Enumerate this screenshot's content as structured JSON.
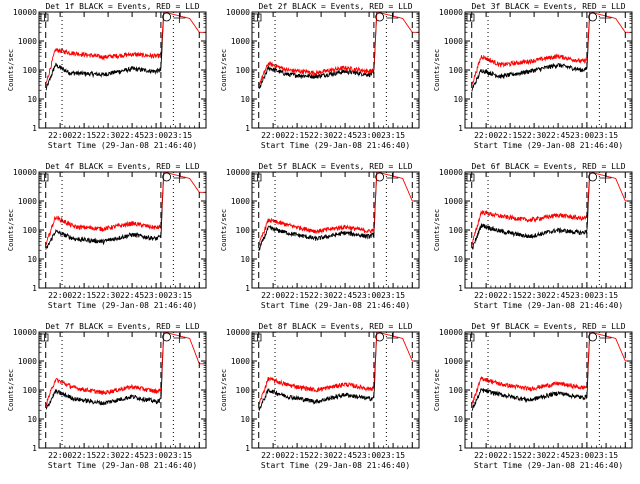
{
  "chart_data": [
    {
      "type": "line",
      "title": "Det 1f BLACK = Events, RED = LLD",
      "xlabel": "Start Time (29-Jan-08 21:46:40)",
      "ylabel": "Counts/sec",
      "xticks": [
        "22:00",
        "22:15",
        "22:30",
        "22:45",
        "23:00",
        "23:15"
      ],
      "yticks": [
        "1",
        "10",
        "100",
        "1000",
        "10000"
      ],
      "yscale": "log",
      "ylim": [
        1,
        10000
      ],
      "series": [
        {
          "name": "Events",
          "color": "#000000",
          "anchors": [
            [
              21.85,
              20
            ],
            [
              21.95,
              150
            ],
            [
              22.1,
              80
            ],
            [
              22.45,
              70
            ],
            [
              22.75,
              110
            ],
            [
              23.0,
              90
            ],
            [
              23.05,
              100
            ],
            [
              23.08,
              10000
            ]
          ]
        },
        {
          "name": "LLD",
          "color": "#ff0000",
          "anchors": [
            [
              21.85,
              30
            ],
            [
              21.95,
              500
            ],
            [
              22.1,
              400
            ],
            [
              22.45,
              280
            ],
            [
              22.75,
              350
            ],
            [
              23.0,
              300
            ],
            [
              23.05,
              320
            ],
            [
              23.08,
              10000
            ],
            [
              23.35,
              6000
            ],
            [
              23.45,
              2000
            ]
          ]
        }
      ]
    },
    {
      "type": "line",
      "title": "Det 2f BLACK = Events, RED = LLD",
      "xlabel": "Start Time (29-Jan-08 21:46:40)",
      "ylabel": "Counts/sec",
      "xticks": [
        "22:00",
        "22:15",
        "22:30",
        "22:45",
        "23:00",
        "23:15"
      ],
      "yticks": [
        "1",
        "10",
        "100",
        "1000",
        "10000"
      ],
      "yscale": "log",
      "ylim": [
        1,
        10000
      ],
      "series": [
        {
          "name": "Events",
          "color": "#000000",
          "anchors": [
            [
              21.85,
              20
            ],
            [
              21.95,
              120
            ],
            [
              22.15,
              70
            ],
            [
              22.45,
              60
            ],
            [
              22.75,
              90
            ],
            [
              23.0,
              70
            ],
            [
              23.05,
              80
            ],
            [
              23.08,
              10000
            ]
          ]
        },
        {
          "name": "LLD",
          "color": "#ff0000",
          "anchors": [
            [
              21.85,
              30
            ],
            [
              21.95,
              170
            ],
            [
              22.15,
              100
            ],
            [
              22.45,
              80
            ],
            [
              22.75,
              120
            ],
            [
              23.0,
              90
            ],
            [
              23.05,
              100
            ],
            [
              23.08,
              10000
            ],
            [
              23.35,
              6000
            ],
            [
              23.45,
              2000
            ]
          ]
        }
      ]
    },
    {
      "type": "line",
      "title": "Det 3f BLACK = Events, RED = LLD",
      "xlabel": "Start Time (29-Jan-08 21:46:40)",
      "ylabel": "Counts/sec",
      "xticks": [
        "22:00",
        "22:15",
        "22:30",
        "22:45",
        "23:00",
        "23:15"
      ],
      "yticks": [
        "1",
        "10",
        "100",
        "1000",
        "10000"
      ],
      "yscale": "log",
      "ylim": [
        1,
        10000
      ],
      "series": [
        {
          "name": "Events",
          "color": "#000000",
          "anchors": [
            [
              21.85,
              20
            ],
            [
              21.95,
              100
            ],
            [
              22.15,
              60
            ],
            [
              22.45,
              90
            ],
            [
              22.75,
              150
            ],
            [
              23.0,
              100
            ],
            [
              23.05,
              110
            ],
            [
              23.08,
              10000
            ]
          ]
        },
        {
          "name": "LLD",
          "color": "#ff0000",
          "anchors": [
            [
              21.85,
              30
            ],
            [
              21.95,
              300
            ],
            [
              22.15,
              150
            ],
            [
              22.45,
              200
            ],
            [
              22.75,
              300
            ],
            [
              23.0,
              200
            ],
            [
              23.05,
              220
            ],
            [
              23.08,
              10000
            ],
            [
              23.35,
              6000
            ],
            [
              23.45,
              2000
            ]
          ]
        }
      ]
    },
    {
      "type": "line",
      "title": "Det 4f BLACK = Events, RED = LLD",
      "xlabel": "Start Time (29-Jan-08 21:46:40)",
      "ylabel": "Counts/sec",
      "xticks": [
        "22:00",
        "22:15",
        "22:30",
        "22:45",
        "23:00",
        "23:15"
      ],
      "yticks": [
        "1",
        "10",
        "100",
        "1000",
        "10000"
      ],
      "yscale": "log",
      "ylim": [
        1,
        10000
      ],
      "series": [
        {
          "name": "Events",
          "color": "#000000",
          "anchors": [
            [
              21.85,
              20
            ],
            [
              21.95,
              90
            ],
            [
              22.15,
              50
            ],
            [
              22.45,
              40
            ],
            [
              22.75,
              70
            ],
            [
              23.0,
              50
            ],
            [
              23.05,
              60
            ],
            [
              23.08,
              10000
            ]
          ]
        },
        {
          "name": "LLD",
          "color": "#ff0000",
          "anchors": [
            [
              21.85,
              30
            ],
            [
              21.95,
              280
            ],
            [
              22.15,
              130
            ],
            [
              22.45,
              110
            ],
            [
              22.75,
              170
            ],
            [
              23.0,
              120
            ],
            [
              23.05,
              130
            ],
            [
              23.08,
              10000
            ],
            [
              23.35,
              6000
            ],
            [
              23.45,
              2000
            ]
          ]
        }
      ]
    },
    {
      "type": "line",
      "title": "Det 5f BLACK = Events, RED = LLD",
      "xlabel": "Start Time (29-Jan-08 21:46:40)",
      "ylabel": "Counts/sec",
      "xticks": [
        "22:00",
        "22:15",
        "22:30",
        "22:45",
        "23:00",
        "23:15"
      ],
      "yticks": [
        "1",
        "10",
        "100",
        "1000",
        "10000"
      ],
      "yscale": "log",
      "ylim": [
        1,
        10000
      ],
      "series": [
        {
          "name": "Events",
          "color": "#000000",
          "anchors": [
            [
              21.85,
              20
            ],
            [
              21.95,
              120
            ],
            [
              22.15,
              80
            ],
            [
              22.45,
              50
            ],
            [
              22.75,
              80
            ],
            [
              23.0,
              60
            ],
            [
              23.05,
              70
            ],
            [
              23.08,
              10000
            ]
          ]
        },
        {
          "name": "LLD",
          "color": "#ff0000",
          "anchors": [
            [
              21.85,
              30
            ],
            [
              21.95,
              220
            ],
            [
              22.15,
              150
            ],
            [
              22.45,
              90
            ],
            [
              22.75,
              130
            ],
            [
              23.0,
              90
            ],
            [
              23.05,
              100
            ],
            [
              23.08,
              10000
            ],
            [
              23.35,
              6000
            ],
            [
              23.45,
              1000
            ]
          ]
        }
      ]
    },
    {
      "type": "line",
      "title": "Det 6f BLACK = Events, RED = LLD",
      "xlabel": "Start Time (29-Jan-08 21:46:40)",
      "ylabel": "Counts/sec",
      "xticks": [
        "22:00",
        "22:15",
        "22:30",
        "22:45",
        "23:00",
        "23:15"
      ],
      "yticks": [
        "1",
        "10",
        "100",
        "1000",
        "10000"
      ],
      "yscale": "log",
      "ylim": [
        1,
        10000
      ],
      "series": [
        {
          "name": "Events",
          "color": "#000000",
          "anchors": [
            [
              21.85,
              20
            ],
            [
              21.95,
              150
            ],
            [
              22.15,
              90
            ],
            [
              22.45,
              60
            ],
            [
              22.75,
              100
            ],
            [
              23.0,
              80
            ],
            [
              23.05,
              90
            ],
            [
              23.08,
              10000
            ]
          ]
        },
        {
          "name": "LLD",
          "color": "#ff0000",
          "anchors": [
            [
              21.85,
              30
            ],
            [
              21.95,
              420
            ],
            [
              22.15,
              300
            ],
            [
              22.45,
              220
            ],
            [
              22.75,
              330
            ],
            [
              23.0,
              250
            ],
            [
              23.05,
              270
            ],
            [
              23.08,
              10000
            ],
            [
              23.35,
              6000
            ],
            [
              23.45,
              1000
            ]
          ]
        }
      ]
    },
    {
      "type": "line",
      "title": "Det 7f BLACK = Events, RED = LLD",
      "xlabel": "Start Time (29-Jan-08 21:46:40)",
      "ylabel": "Counts/sec",
      "xticks": [
        "22:00",
        "22:15",
        "22:30",
        "22:45",
        "23:00",
        "23:15"
      ],
      "yticks": [
        "1",
        "10",
        "100",
        "1000",
        "10000"
      ],
      "yscale": "log",
      "ylim": [
        1,
        10000
      ],
      "series": [
        {
          "name": "Events",
          "color": "#000000",
          "anchors": [
            [
              21.85,
              20
            ],
            [
              21.95,
              90
            ],
            [
              22.15,
              50
            ],
            [
              22.45,
              35
            ],
            [
              22.75,
              60
            ],
            [
              23.0,
              40
            ],
            [
              23.05,
              45
            ],
            [
              23.08,
              10000
            ]
          ]
        },
        {
          "name": "LLD",
          "color": "#ff0000",
          "anchors": [
            [
              21.85,
              30
            ],
            [
              21.95,
              230
            ],
            [
              22.15,
              120
            ],
            [
              22.45,
              80
            ],
            [
              22.75,
              130
            ],
            [
              23.0,
              90
            ],
            [
              23.05,
              100
            ],
            [
              23.08,
              10000
            ],
            [
              23.35,
              6000
            ],
            [
              23.45,
              800
            ]
          ]
        }
      ]
    },
    {
      "type": "line",
      "title": "Det 8f BLACK = Events, RED = LLD",
      "xlabel": "Start Time (29-Jan-08 21:46:40)",
      "ylabel": "Counts/sec",
      "xticks": [
        "22:00",
        "22:15",
        "22:30",
        "22:45",
        "23:00",
        "23:15"
      ],
      "yticks": [
        "1",
        "10",
        "100",
        "1000",
        "10000"
      ],
      "yscale": "log",
      "ylim": [
        1,
        10000
      ],
      "series": [
        {
          "name": "Events",
          "color": "#000000",
          "anchors": [
            [
              21.85,
              20
            ],
            [
              21.95,
              100
            ],
            [
              22.15,
              60
            ],
            [
              22.45,
              40
            ],
            [
              22.75,
              70
            ],
            [
              23.0,
              50
            ],
            [
              23.05,
              55
            ],
            [
              23.08,
              10000
            ]
          ]
        },
        {
          "name": "LLD",
          "color": "#ff0000",
          "anchors": [
            [
              21.85,
              30
            ],
            [
              21.95,
              250
            ],
            [
              22.15,
              150
            ],
            [
              22.45,
              100
            ],
            [
              22.75,
              160
            ],
            [
              23.0,
              110
            ],
            [
              23.05,
              120
            ],
            [
              23.08,
              10000
            ],
            [
              23.35,
              6000
            ],
            [
              23.45,
              1000
            ]
          ]
        }
      ]
    },
    {
      "type": "line",
      "title": "Det 9f BLACK = Events, RED = LLD",
      "xlabel": "Start Time (29-Jan-08 21:46:40)",
      "ylabel": "Counts/sec",
      "xticks": [
        "22:00",
        "22:15",
        "22:30",
        "22:45",
        "23:00",
        "23:15"
      ],
      "yticks": [
        "1",
        "10",
        "100",
        "1000",
        "10000"
      ],
      "yscale": "log",
      "ylim": [
        1,
        10000
      ],
      "series": [
        {
          "name": "Events",
          "color": "#000000",
          "anchors": [
            [
              21.85,
              20
            ],
            [
              21.95,
              100
            ],
            [
              22.15,
              70
            ],
            [
              22.45,
              45
            ],
            [
              22.75,
              80
            ],
            [
              23.0,
              55
            ],
            [
              23.05,
              60
            ],
            [
              23.08,
              10000
            ]
          ]
        },
        {
          "name": "LLD",
          "color": "#ff0000",
          "anchors": [
            [
              21.85,
              30
            ],
            [
              21.95,
              260
            ],
            [
              22.15,
              160
            ],
            [
              22.45,
              110
            ],
            [
              22.75,
              170
            ],
            [
              23.0,
              120
            ],
            [
              23.05,
              130
            ],
            [
              23.08,
              10000
            ],
            [
              23.35,
              6000
            ],
            [
              23.45,
              1000
            ]
          ]
        }
      ]
    }
  ]
}
